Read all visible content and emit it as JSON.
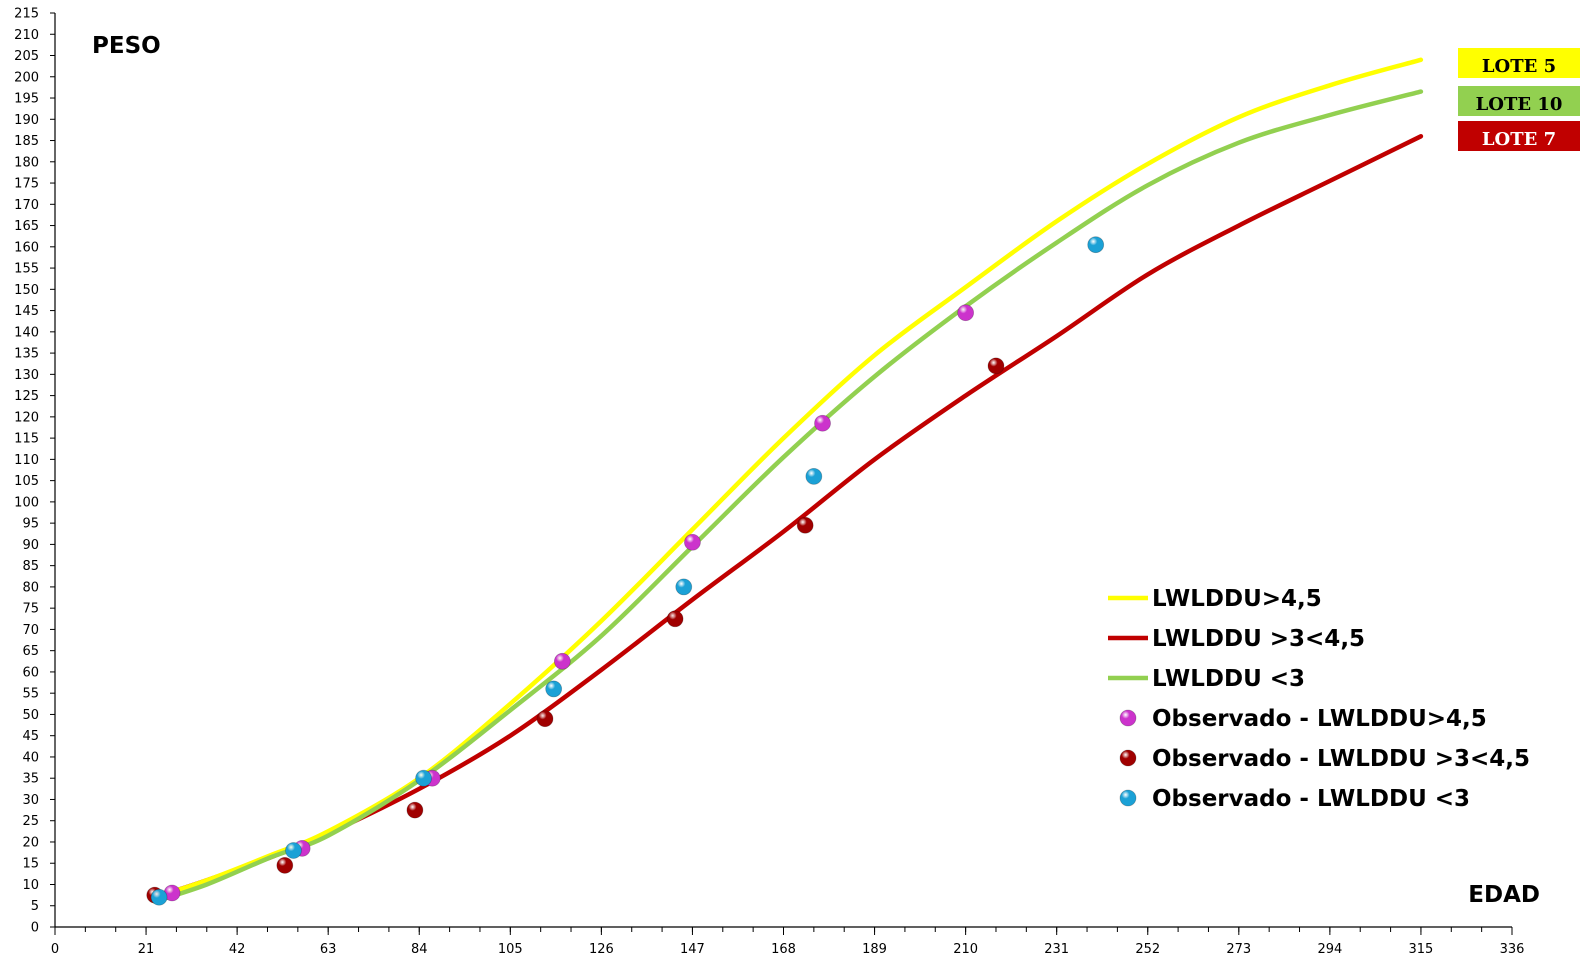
{
  "chart_data": {
    "type": "scatter",
    "title": "",
    "xlabel": "EDAD",
    "ylabel": "PESO",
    "xlim": [
      0,
      336
    ],
    "ylim": [
      0,
      215
    ],
    "xticks": [
      0,
      21,
      42,
      63,
      84,
      105,
      126,
      147,
      168,
      189,
      210,
      231,
      252,
      273,
      294,
      315,
      336
    ],
    "ytick_step": 5,
    "grid": false,
    "legend_position": "bottom-right",
    "series": [
      {
        "name": "LWLDDU>4,5",
        "kind": "line",
        "color": "#ffff00",
        "x": [
          23,
          35,
          50,
          63,
          84,
          105,
          126,
          147,
          168,
          189,
          210,
          231,
          252,
          273,
          294,
          315
        ],
        "y": [
          7,
          11,
          17,
          22.5,
          35,
          52.5,
          72,
          93.5,
          115,
          134.5,
          150.5,
          166,
          179.5,
          190.5,
          198,
          204
        ]
      },
      {
        "name": "LWLDDU >3<4,5",
        "kind": "line",
        "color": "#c00000",
        "x": [
          23,
          35,
          50,
          63,
          84,
          105,
          126,
          147,
          168,
          189,
          210,
          231,
          252,
          273,
          294,
          315
        ],
        "y": [
          7,
          11,
          16.5,
          22,
          32.5,
          45,
          60.5,
          77,
          93,
          110,
          125,
          139,
          153.5,
          165,
          175.5,
          186
        ]
      },
      {
        "name": "LWLDDU <3",
        "kind": "line",
        "color": "#92d050",
        "x": [
          23,
          35,
          50,
          63,
          84,
          105,
          126,
          147,
          168,
          189,
          210,
          231,
          252,
          273,
          294,
          315
        ],
        "y": [
          6,
          10,
          16.5,
          21.5,
          34.5,
          51,
          68.5,
          89.5,
          110.5,
          129.5,
          146,
          161,
          174.5,
          184.5,
          191,
          196.5
        ]
      },
      {
        "name": "Observado - LWLDDU>4,5",
        "kind": "points",
        "color": "#cc33cc",
        "x": [
          27,
          57,
          87,
          117,
          147,
          177,
          210
        ],
        "y": [
          8,
          18.5,
          35,
          62.5,
          90.5,
          118.5,
          144.5
        ]
      },
      {
        "name": "Observado - LWLDDU >3<4,5",
        "kind": "points",
        "color": "#a00000",
        "x": [
          23,
          53,
          83,
          113,
          143,
          173,
          217
        ],
        "y": [
          7.5,
          14.5,
          27.5,
          49,
          72.5,
          94.5,
          132
        ]
      },
      {
        "name": "Observado - LWLDDU <3",
        "kind": "points",
        "color": "#1ba1d6",
        "x": [
          24,
          55,
          85,
          115,
          145,
          175,
          240
        ],
        "y": [
          7,
          18,
          35,
          56,
          80,
          106,
          160.5
        ]
      }
    ],
    "lote_labels": [
      {
        "label": "LOTE 5",
        "color": "#ffff00"
      },
      {
        "label": "LOTE 10",
        "color": "#92d050"
      },
      {
        "label": "LOTE 7",
        "color": "#c00000"
      }
    ]
  }
}
